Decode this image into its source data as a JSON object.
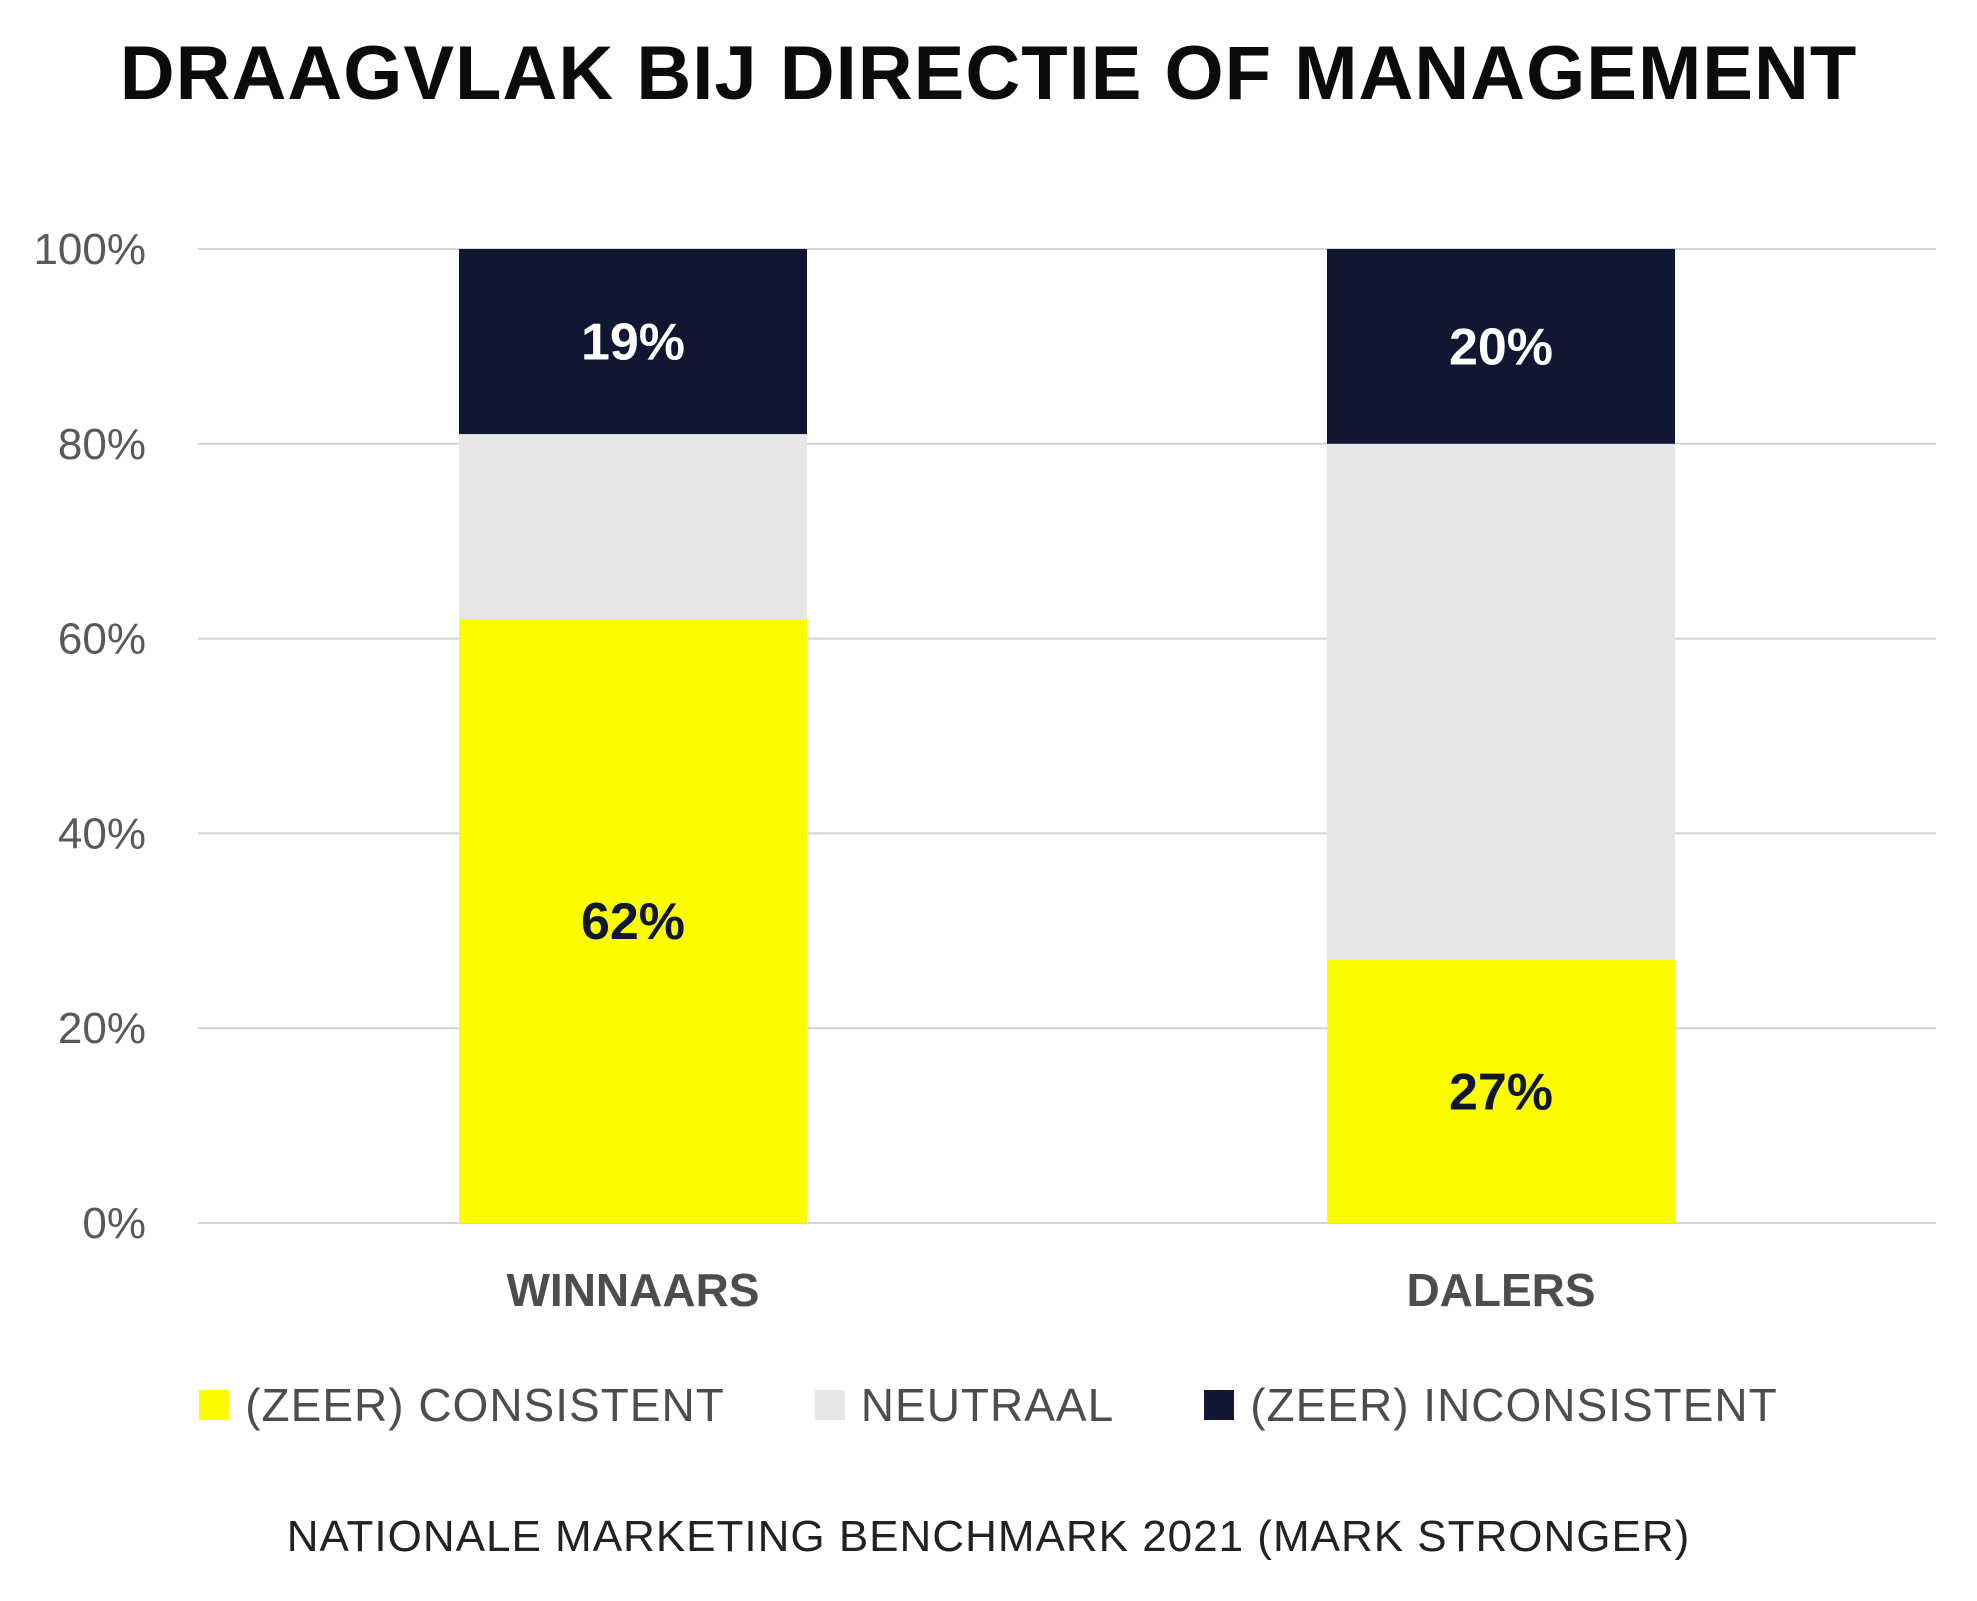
{
  "chart_data": {
    "type": "bar",
    "stacked": true,
    "title": "DRAAGVLAK BIJ DIRECTIE OF MANAGEMENT",
    "categories": [
      "WINNAARS",
      "DALERS"
    ],
    "series": [
      {
        "name": "(ZEER) CONSISTENT",
        "values": [
          62,
          27
        ],
        "color": "#fdfd00",
        "label_color": "#111633",
        "labels": [
          "62%",
          "27%"
        ]
      },
      {
        "name": "NEUTRAAL",
        "values": [
          19,
          53
        ],
        "color": "#e6e6e8",
        "label_color": "#111633",
        "labels": [
          "",
          ""
        ]
      },
      {
        "name": "(ZEER) INCONSISTENT",
        "values": [
          19,
          20
        ],
        "color": "#111633",
        "label_color": "#ffffff",
        "labels": [
          "19%",
          "20%"
        ]
      }
    ],
    "ylim": [
      0,
      100
    ],
    "yticks": [
      "0%",
      "20%",
      "40%",
      "60%",
      "80%",
      "100%"
    ],
    "grid": true,
    "legend_position": "bottom",
    "source": "NATIONALE MARKETING BENCHMARK 2021 (MARK STRONGER)"
  }
}
